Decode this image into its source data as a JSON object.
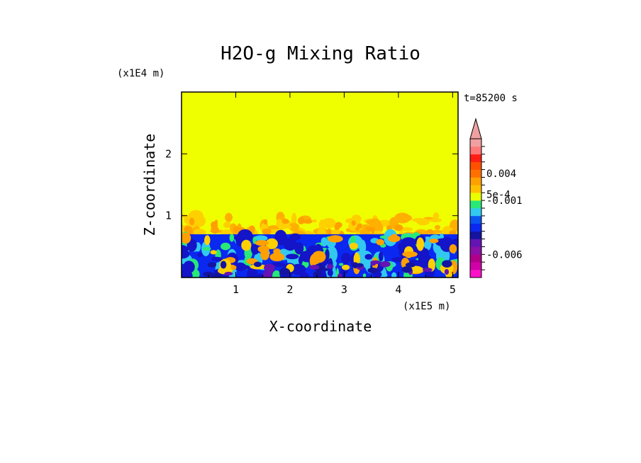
{
  "chart_data": {
    "type": "heatmap",
    "title": "H2O-g Mixing Ratio",
    "time_label": "t=85200 s",
    "xlabel": "X-coordinate",
    "ylabel": "Z-coordinate",
    "x_unit": "(x1E5 m)",
    "y_unit": "(x1E4 m)",
    "xlim": [
      0,
      5.1
    ],
    "ylim": [
      0,
      3
    ],
    "x_ticks": [
      "1",
      "2",
      "3",
      "4",
      "5"
    ],
    "x_tick_values": [
      1,
      2,
      3,
      4,
      5
    ],
    "y_ticks": [
      "1",
      "2"
    ],
    "y_tick_values": [
      1,
      2
    ],
    "field": {
      "uniform_layer": {
        "z_from": 1.0,
        "z_to": 3.0,
        "color": "#f0ff00"
      },
      "turbulent_upper_layer": {
        "z_from": 0.7,
        "z_to": 1.0
      },
      "boundary_layer": {
        "z_from": 0.0,
        "z_to": 0.7
      }
    },
    "colorbar": {
      "colors": [
        "#ff10c8",
        "#d000a8",
        "#b0008a",
        "#8a10a8",
        "#6414b4",
        "#1414a0",
        "#0a28f0",
        "#0a55f0",
        "#32c8f0",
        "#28e878",
        "#e8ff00",
        "#ffc000",
        "#ffa000",
        "#ff7000",
        "#ff5000",
        "#ff1e14",
        "#ff7878",
        "#f0a0a0"
      ],
      "labels": [
        {
          "text": "0.004",
          "band": 13.5
        },
        {
          "text": "5e-4",
          "band": 10.8
        },
        {
          "text": "-0.001",
          "band": 10.0
        },
        {
          "text": "-0.006",
          "band": 3.0
        }
      ],
      "extend": "max"
    }
  }
}
